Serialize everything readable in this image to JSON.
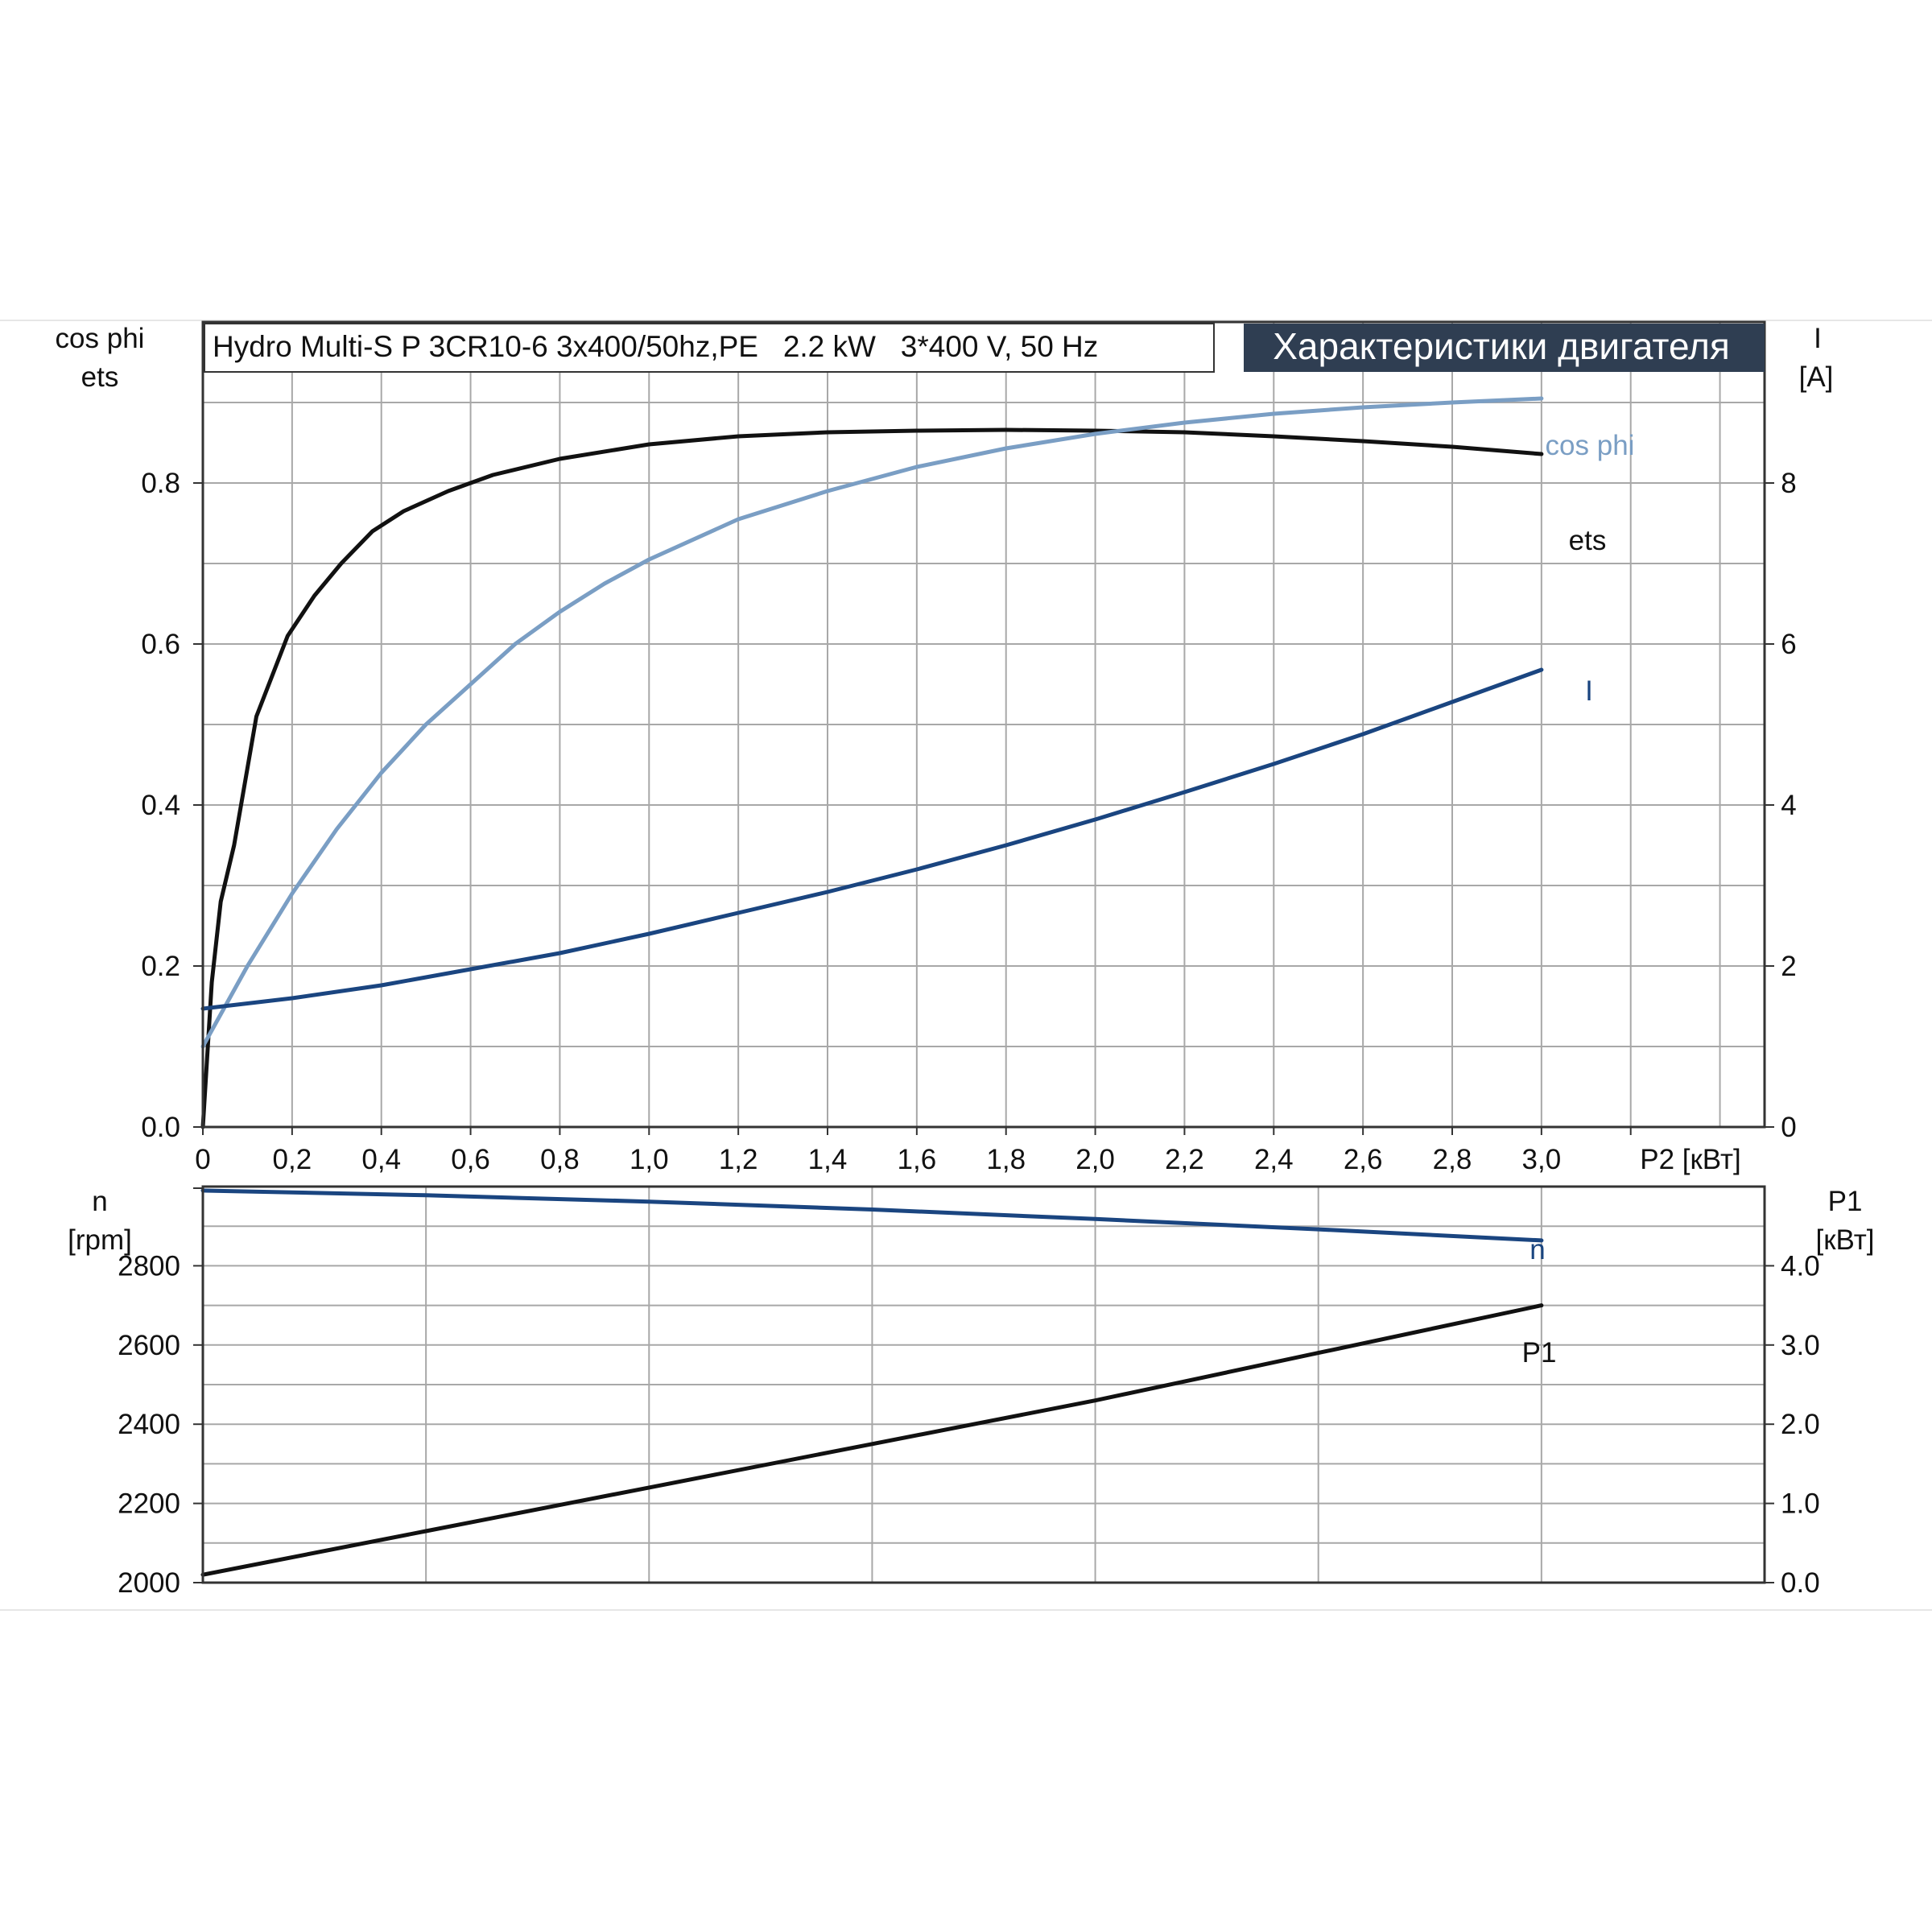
{
  "caption": "Hydro Multi-S P 3CR10-6 3x400/50hz,PE   2.2 kW   3*400 V, 50 Hz",
  "title": "Характеристики двигателя",
  "colors": {
    "ets": "#111111",
    "cos_phi": "#7a9ec4",
    "I": "#1a4580",
    "n": "#1a4580",
    "P1": "#111111",
    "title_bg": "#2f3e52"
  },
  "chart_data": [
    {
      "type": "line",
      "panel": "top",
      "x_axis": {
        "label": "P2 [кВт]",
        "range": [
          0,
          3.5
        ],
        "ticks": [
          0,
          0.2,
          0.4,
          0.6,
          0.8,
          1.0,
          1.2,
          1.4,
          1.6,
          1.8,
          2.0,
          2.2,
          2.4,
          2.6,
          2.8,
          3.0
        ],
        "tick_labels": [
          "0",
          "0,2",
          "0,4",
          "0,6",
          "0,8",
          "1,0",
          "1,2",
          "1,4",
          "1,6",
          "1,8",
          "2,0",
          "2,2",
          "2,4",
          "2,6",
          "2,8",
          "3,0"
        ]
      },
      "y_left": {
        "label_lines": [
          "cos phi",
          "ets"
        ],
        "range": [
          0,
          1.0
        ],
        "ticks": [
          0.0,
          0.2,
          0.4,
          0.6,
          0.8
        ],
        "tick_labels": [
          "0.0",
          "0.2",
          "0.4",
          "0.6",
          "0.8"
        ]
      },
      "y_right": {
        "label_lines": [
          "I",
          "[A]"
        ],
        "range": [
          0,
          10
        ],
        "ticks": [
          0,
          2,
          4,
          6,
          8
        ],
        "tick_labels": [
          "0",
          "2",
          "4",
          "6",
          "8"
        ]
      },
      "grid": true,
      "series": [
        {
          "name": "ets",
          "axis": "left",
          "label": "ets",
          "x": [
            0,
            0.02,
            0.04,
            0.07,
            0.12,
            0.19,
            0.25,
            0.31,
            0.38,
            0.45,
            0.55,
            0.65,
            0.8,
            1.0,
            1.2,
            1.4,
            1.6,
            1.8,
            2.0,
            2.2,
            2.4,
            2.6,
            2.8,
            3.0
          ],
          "y": [
            0.0,
            0.18,
            0.28,
            0.35,
            0.51,
            0.61,
            0.66,
            0.7,
            0.74,
            0.765,
            0.79,
            0.81,
            0.83,
            0.848,
            0.858,
            0.863,
            0.865,
            0.866,
            0.865,
            0.863,
            0.858,
            0.852,
            0.845,
            0.836
          ]
        },
        {
          "name": "cos phi",
          "axis": "left",
          "label": "cos phi",
          "x": [
            0,
            0.1,
            0.2,
            0.3,
            0.4,
            0.5,
            0.6,
            0.7,
            0.8,
            0.9,
            1.0,
            1.2,
            1.4,
            1.6,
            1.8,
            2.0,
            2.2,
            2.4,
            2.6,
            2.8,
            3.0
          ],
          "y": [
            0.1,
            0.2,
            0.29,
            0.37,
            0.44,
            0.5,
            0.55,
            0.6,
            0.64,
            0.675,
            0.705,
            0.755,
            0.79,
            0.82,
            0.843,
            0.861,
            0.875,
            0.886,
            0.894,
            0.9,
            0.905
          ]
        },
        {
          "name": "I",
          "axis": "right",
          "label": "I",
          "x": [
            0,
            0.2,
            0.4,
            0.6,
            0.8,
            1.0,
            1.2,
            1.4,
            1.6,
            1.8,
            2.0,
            2.2,
            2.4,
            2.6,
            2.8,
            3.0
          ],
          "y": [
            1.47,
            1.6,
            1.76,
            1.96,
            2.16,
            2.4,
            2.66,
            2.92,
            3.2,
            3.5,
            3.82,
            4.16,
            4.51,
            4.88,
            5.28,
            5.68
          ]
        }
      ]
    },
    {
      "type": "line",
      "panel": "bottom",
      "x_axis": {
        "range": [
          0,
          3.5
        ]
      },
      "y_left": {
        "label_lines": [
          "n",
          "[rpm]"
        ],
        "range": [
          2000,
          3000
        ],
        "ticks": [
          2000,
          2200,
          2400,
          2600,
          2800
        ],
        "tick_labels": [
          "2000",
          "2200",
          "2400",
          "2600",
          "2800"
        ]
      },
      "y_right": {
        "label_lines": [
          "P1",
          "[кВт]"
        ],
        "range": [
          0,
          5
        ],
        "ticks": [
          0,
          1,
          2,
          3,
          4
        ],
        "tick_labels": [
          "0.0",
          "1.0",
          "2.0",
          "3.0",
          "4.0"
        ]
      },
      "grid": true,
      "series": [
        {
          "name": "n",
          "axis": "left",
          "label": "n",
          "x": [
            0,
            0.5,
            1.0,
            1.5,
            2.0,
            2.5,
            3.0
          ],
          "y": [
            2990,
            2978,
            2962,
            2942,
            2918,
            2892,
            2864
          ]
        },
        {
          "name": "P1",
          "axis": "right",
          "label": "P1",
          "x": [
            0,
            0.5,
            1.0,
            1.5,
            2.0,
            2.5,
            3.0
          ],
          "y": [
            0.1,
            0.65,
            1.2,
            1.75,
            2.3,
            2.9,
            3.5
          ]
        }
      ]
    }
  ]
}
